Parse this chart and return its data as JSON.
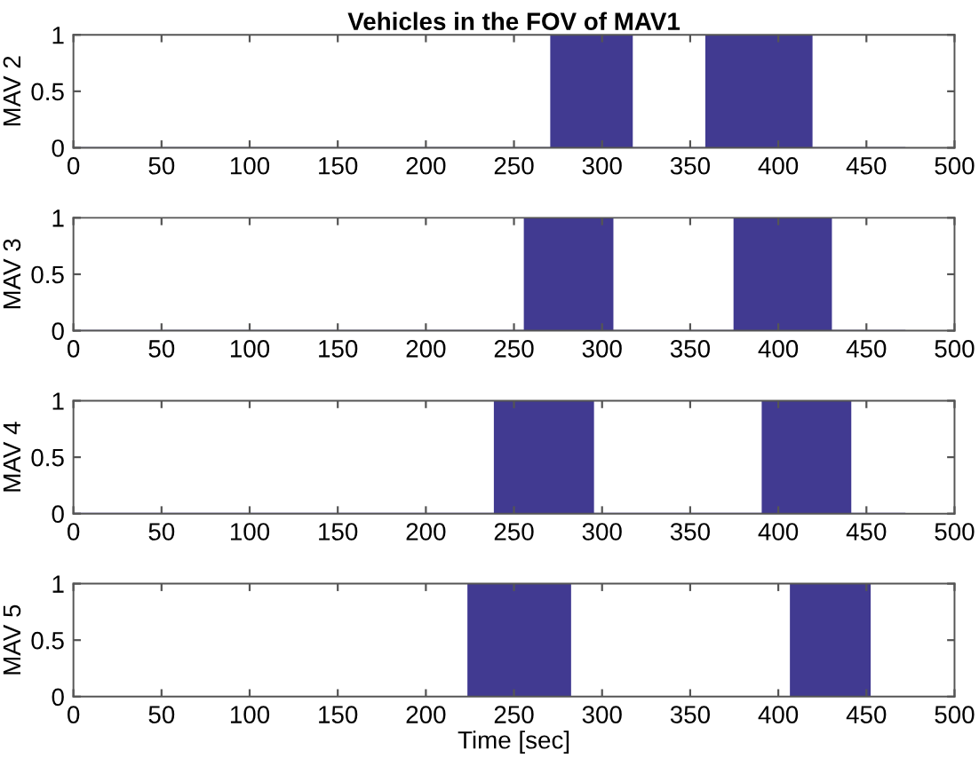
{
  "chart_data": [
    {
      "type": "area",
      "title": "Vehicles in the FOV of MAV1",
      "ylabel": "MAV 2",
      "xlim": [
        0,
        500
      ],
      "ylim": [
        0,
        1
      ],
      "xticks": [
        0,
        50,
        100,
        150,
        200,
        250,
        300,
        350,
        400,
        450,
        500
      ],
      "yticks": [
        0,
        0.5,
        1
      ],
      "grid": false,
      "series": [
        {
          "color": "#413a91",
          "x": [
            0,
            271,
            271,
            317,
            317,
            359,
            359,
            419,
            419,
            472
          ],
          "values": [
            0,
            0,
            1,
            1,
            0,
            0,
            1,
            1,
            0,
            0
          ]
        }
      ]
    },
    {
      "type": "area",
      "ylabel": "MAV 3",
      "xlim": [
        0,
        500
      ],
      "ylim": [
        0,
        1
      ],
      "xticks": [
        0,
        50,
        100,
        150,
        200,
        250,
        300,
        350,
        400,
        450,
        500
      ],
      "yticks": [
        0,
        0.5,
        1
      ],
      "grid": false,
      "series": [
        {
          "color": "#413a91",
          "x": [
            0,
            256,
            256,
            306,
            306,
            375,
            375,
            430,
            430,
            472
          ],
          "values": [
            0,
            0,
            1,
            1,
            0,
            0,
            1,
            1,
            0,
            0
          ]
        }
      ]
    },
    {
      "type": "area",
      "ylabel": "MAV 4",
      "xlim": [
        0,
        500
      ],
      "ylim": [
        0,
        1
      ],
      "xticks": [
        0,
        50,
        100,
        150,
        200,
        250,
        300,
        350,
        400,
        450,
        500
      ],
      "yticks": [
        0,
        0.5,
        1
      ],
      "grid": false,
      "series": [
        {
          "color": "#413a91",
          "x": [
            0,
            239,
            239,
            295,
            295,
            391,
            391,
            441,
            441,
            472
          ],
          "values": [
            0,
            0,
            1,
            1,
            0,
            0,
            1,
            1,
            0,
            0
          ]
        }
      ]
    },
    {
      "type": "area",
      "ylabel": "MAV 5",
      "xlabel": "Time [sec]",
      "xlim": [
        0,
        500
      ],
      "ylim": [
        0,
        1
      ],
      "xticks": [
        0,
        50,
        100,
        150,
        200,
        250,
        300,
        350,
        400,
        450,
        500
      ],
      "yticks": [
        0,
        0.5,
        1
      ],
      "grid": false,
      "series": [
        {
          "color": "#413a91",
          "x": [
            0,
            224,
            224,
            282,
            282,
            407,
            407,
            452,
            452,
            472
          ],
          "values": [
            0,
            0,
            1,
            1,
            0,
            0,
            1,
            1,
            0,
            0
          ]
        }
      ]
    }
  ]
}
